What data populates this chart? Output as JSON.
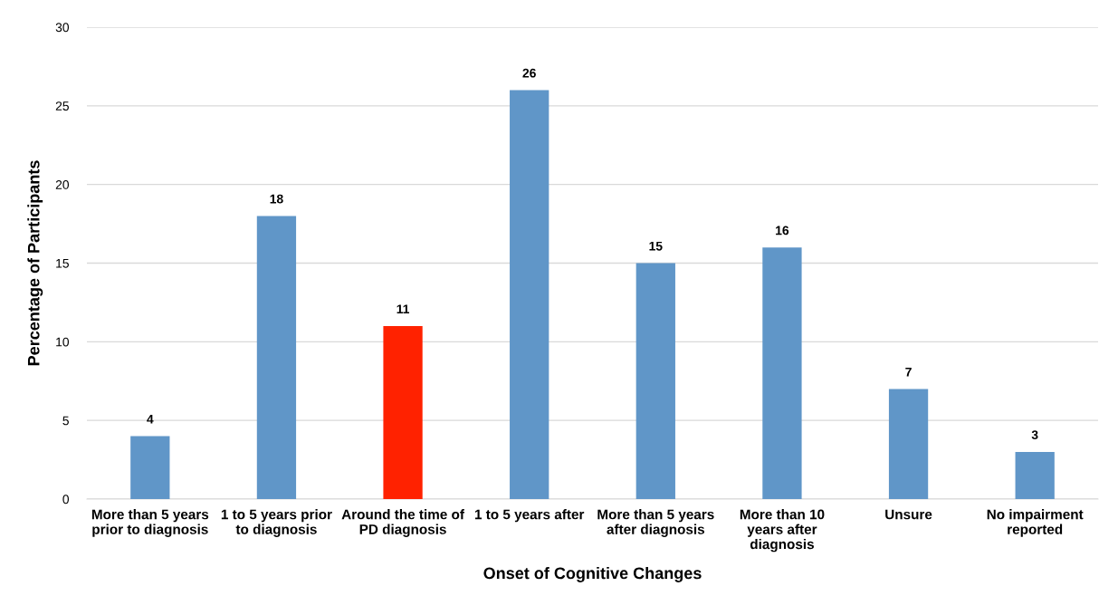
{
  "chart_data": {
    "type": "bar",
    "xlabel": "Onset of Cognitive Changes",
    "ylabel": "Percentage of Participants",
    "categories": [
      "More than 5 years\nprior to diagnosis",
      "1 to 5 years prior\nto diagnosis",
      "Around the time of\nPD diagnosis",
      "1 to 5 years after",
      "More than 5 years\nafter diagnosis",
      "More than 10\nyears after\ndiagnosis",
      "Unsure",
      "No impairment\nreported"
    ],
    "values": [
      4,
      18,
      11,
      26,
      15,
      16,
      7,
      3
    ],
    "colors": [
      "#6096c8",
      "#6096c8",
      "#ff2200",
      "#6096c8",
      "#6096c8",
      "#6096c8",
      "#6096c8",
      "#6096c8"
    ],
    "ylim": [
      0,
      30
    ],
    "yticks": [
      0,
      5,
      10,
      15,
      20,
      25,
      30
    ],
    "grid": "y",
    "data_labels": true
  }
}
